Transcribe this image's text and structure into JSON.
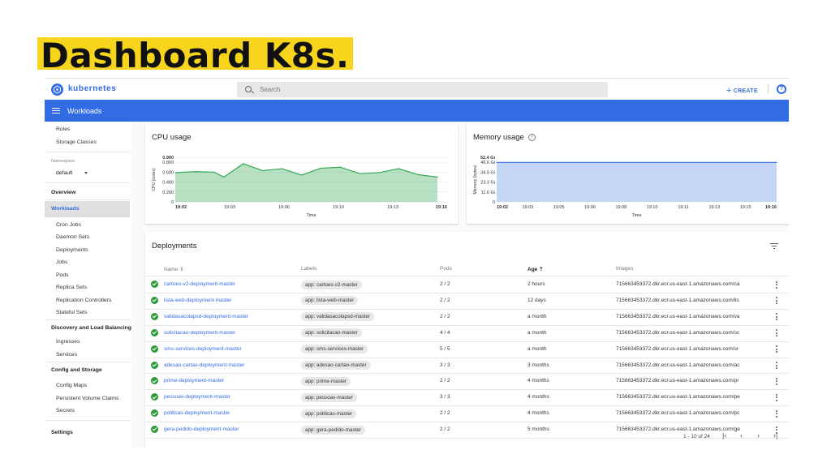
{
  "slide": {
    "title": "Dashboard K8s."
  },
  "header": {
    "brand": "kubernetes",
    "search_placeholder": "Search",
    "create_label": "CREATE",
    "accent_color": "#326ce5"
  },
  "toolbar": {
    "section_title": "Workloads"
  },
  "sidebar": {
    "top_items": [
      "Roles",
      "Storage Classes"
    ],
    "namespace_label": "Namespace",
    "namespace_value": "default",
    "overview": "Overview",
    "workloads": "Workloads",
    "workload_items": [
      "Cron Jobs",
      "Daemon Sets",
      "Deployments",
      "Jobs",
      "Pods",
      "Replica Sets",
      "Replication Controllers",
      "Stateful Sets"
    ],
    "discovery": "Discovery and Load Balancing",
    "discovery_items": [
      "Ingresses",
      "Services"
    ],
    "config": "Config and Storage",
    "config_items": [
      "Config Maps",
      "Persistent Volume Claims",
      "Secrets"
    ],
    "settings": "Settings"
  },
  "cpu_card": {
    "title": "CPU usage"
  },
  "memory_card": {
    "title": "Memory usage"
  },
  "chart_data": [
    {
      "type": "area",
      "title": "CPU usage",
      "xlabel": "Time",
      "ylabel": "CPU (cores)",
      "yticks": [
        "0.900",
        "0.800",
        "0.600",
        "0.400",
        "0.200",
        "0"
      ],
      "ylim": [
        0,
        0.9
      ],
      "xticks": [
        "19:02",
        "19:03",
        "19:06",
        "19:10",
        "19:13",
        "19:16"
      ],
      "xlim": [
        0,
        14
      ],
      "series": [
        {
          "x": [
            0,
            1,
            2,
            2.5,
            3.5,
            4.5,
            5.5,
            6.5,
            7.5,
            8.5,
            9.5,
            10.5,
            11.5,
            12.5,
            13.5
          ],
          "values": [
            0.59,
            0.61,
            0.6,
            0.5,
            0.77,
            0.63,
            0.67,
            0.54,
            0.68,
            0.7,
            0.57,
            0.59,
            0.67,
            0.55,
            0.5
          ]
        }
      ],
      "color": "#34a853"
    },
    {
      "type": "area",
      "title": "Memory usage",
      "xlabel": "Time",
      "ylabel": "Memory (bytes)",
      "yticks": [
        "52.4 Gi",
        "46.6 Gi",
        "34.9 Gi",
        "23.3 Gi",
        "11.6 Gi",
        "0"
      ],
      "ylim": [
        0,
        52.4
      ],
      "xticks": [
        "19:02",
        "19:03",
        "19:05",
        "19:06",
        "19:08",
        "19:10",
        "19:11",
        "19:13",
        "19:15",
        "19:16"
      ],
      "xlim": [
        0,
        14
      ],
      "series": [
        {
          "x": [
            0,
            14
          ],
          "values": [
            46.4,
            46.4
          ]
        }
      ],
      "color": "#326ce5"
    }
  ],
  "deployments": {
    "title": "Deployments",
    "columns": {
      "name": "Name",
      "labels": "Labels",
      "pods": "Pods",
      "age": "Age",
      "images": "Images"
    },
    "rows": [
      {
        "name": "cartoes-v2-deployment-master",
        "label": "app: cartoes-v2-master",
        "pods": "2 / 2",
        "age": "2 hours",
        "image": "715663453372.dkr.ecr.us-east-1.amazonaws.com/ca"
      },
      {
        "name": "lista-web-deployment-master",
        "label": "app: lista-web-master",
        "pods": "2 / 2",
        "age": "12 days",
        "image": "715663453372.dkr.ecr.us-east-1.amazonaws.com/lis"
      },
      {
        "name": "validasacolapsd-deployment-master",
        "label": "app: validasacolapsd-master",
        "pods": "2 / 2",
        "age": "a month",
        "image": "715663453372.dkr.ecr.us-east-1.amazonaws.com/va"
      },
      {
        "name": "solicitacao-deployment-master",
        "label": "app: solicitacao-master",
        "pods": "4 / 4",
        "age": "a month",
        "image": "715663453372.dkr.ecr.us-east-1.amazonaws.com/sc"
      },
      {
        "name": "sms-services-deployment-master",
        "label": "app: sms-services-master",
        "pods": "5 / 5",
        "age": "a month",
        "image": "715663453372.dkr.ecr.us-east-1.amazonaws.com/sr"
      },
      {
        "name": "adesao-cartao-deployment-master",
        "label": "app: adesao-cartao-master",
        "pods": "3 / 3",
        "age": "3 months",
        "image": "715663453372.dkr.ecr.us-east-1.amazonaws.com/ac"
      },
      {
        "name": "prime-deployment-master",
        "label": "app: prime-master",
        "pods": "2 / 2",
        "age": "4 months",
        "image": "715663453372.dkr.ecr.us-east-1.amazonaws.com/pr"
      },
      {
        "name": "pessoas-deployment-master",
        "label": "app: pessoas-master",
        "pods": "3 / 3",
        "age": "4 months",
        "image": "715663453372.dkr.ecr.us-east-1.amazonaws.com/pe"
      },
      {
        "name": "politicas-deployment-master",
        "label": "app: politicas-master",
        "pods": "2 / 2",
        "age": "4 months",
        "image": "715663453372.dkr.ecr.us-east-1.amazonaws.com/pc"
      },
      {
        "name": "gera-pedido-deployment-master",
        "label": "app: gera-pedido-master",
        "pods": "2 / 2",
        "age": "5 months",
        "image": "715663453372.dkr.ecr.us-east-1.amazonaws.com/ge"
      }
    ],
    "pagination": "1 - 10 of 24",
    "status_color": "#2e9a3a"
  }
}
